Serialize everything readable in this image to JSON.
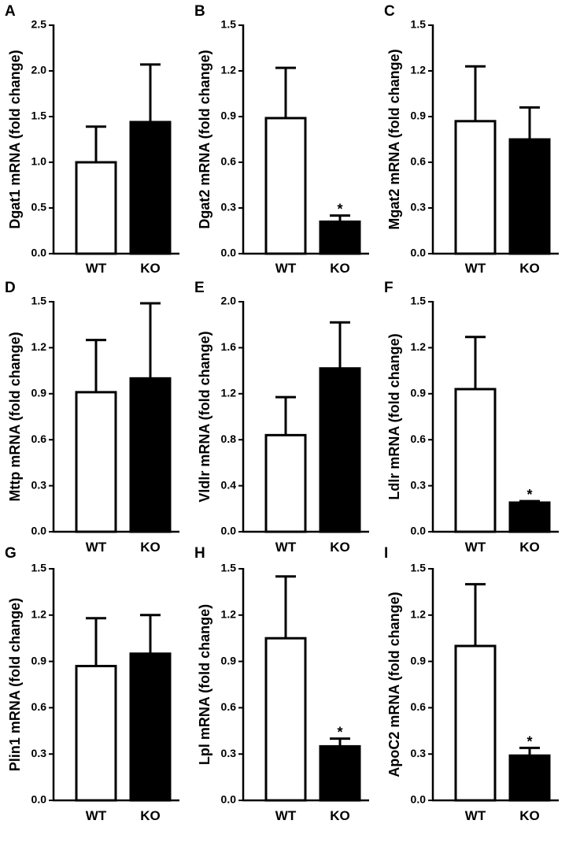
{
  "chart_data": [
    {
      "panel": "A",
      "type": "bar",
      "ylabel": "Dgat1 mRNA (fold change)",
      "categories": [
        "WT",
        "KO"
      ],
      "values": [
        1.0,
        1.44
      ],
      "errors": [
        0.39,
        0.63
      ],
      "ylim": [
        0,
        2.5
      ],
      "yticks": [
        "0.0",
        "0.5",
        "1.0",
        "1.5",
        "2.0",
        "2.5"
      ],
      "significance": [
        "",
        ""
      ]
    },
    {
      "panel": "B",
      "type": "bar",
      "ylabel": "Dgat2 mRNA (fold change)",
      "categories": [
        "WT",
        "KO"
      ],
      "values": [
        0.89,
        0.21
      ],
      "errors": [
        0.33,
        0.04
      ],
      "ylim": [
        0,
        1.5
      ],
      "yticks": [
        "0.0",
        "0.3",
        "0.6",
        "0.9",
        "1.2",
        "1.5"
      ],
      "significance": [
        "",
        "*"
      ]
    },
    {
      "panel": "C",
      "type": "bar",
      "ylabel": "Mgat2 mRNA (fold change)",
      "categories": [
        "WT",
        "KO"
      ],
      "values": [
        0.87,
        0.75
      ],
      "errors": [
        0.36,
        0.21
      ],
      "ylim": [
        0,
        1.5
      ],
      "yticks": [
        "0.0",
        "0.3",
        "0.6",
        "0.9",
        "1.2",
        "1.5"
      ],
      "significance": [
        "",
        ""
      ]
    },
    {
      "panel": "D",
      "type": "bar",
      "ylabel": "Mttp mRNA (fold change)",
      "categories": [
        "WT",
        "KO"
      ],
      "values": [
        0.91,
        1.0
      ],
      "errors": [
        0.34,
        0.49
      ],
      "ylim": [
        0,
        1.5
      ],
      "yticks": [
        "0.0",
        "0.3",
        "0.6",
        "0.9",
        "1.2",
        "1.5"
      ],
      "significance": [
        "",
        ""
      ]
    },
    {
      "panel": "E",
      "type": "bar",
      "ylabel": "Vldlr mRNA (fold change)",
      "categories": [
        "WT",
        "KO"
      ],
      "values": [
        0.84,
        1.42
      ],
      "errors": [
        0.33,
        0.4
      ],
      "ylim": [
        0,
        2.0
      ],
      "yticks": [
        "0.0",
        "0.4",
        "0.8",
        "1.2",
        "1.6",
        "2.0"
      ],
      "significance": [
        "",
        ""
      ]
    },
    {
      "panel": "F",
      "type": "bar",
      "ylabel": "Ldlr mRNA (fold change)",
      "categories": [
        "WT",
        "KO"
      ],
      "values": [
        0.93,
        0.19
      ],
      "errors": [
        0.34,
        0.01
      ],
      "ylim": [
        0,
        1.5
      ],
      "yticks": [
        "0.0",
        "0.3",
        "0.6",
        "0.9",
        "1.2",
        "1.5"
      ],
      "significance": [
        "",
        "*"
      ]
    },
    {
      "panel": "G",
      "type": "bar",
      "ylabel": "Plin1 mRNA (fold change)",
      "categories": [
        "WT",
        "KO"
      ],
      "values": [
        0.87,
        0.95
      ],
      "errors": [
        0.31,
        0.25
      ],
      "ylim": [
        0,
        1.5
      ],
      "yticks": [
        "0.0",
        "0.3",
        "0.6",
        "0.9",
        "1.2",
        "1.5"
      ],
      "significance": [
        "",
        ""
      ]
    },
    {
      "panel": "H",
      "type": "bar",
      "ylabel": "Lpl mRNA (fold change)",
      "categories": [
        "WT",
        "KO"
      ],
      "values": [
        1.05,
        0.35
      ],
      "errors": [
        0.4,
        0.05
      ],
      "ylim": [
        0,
        1.5
      ],
      "yticks": [
        "0.0",
        "0.3",
        "0.6",
        "0.9",
        "1.2",
        "1.5"
      ],
      "significance": [
        "",
        "*"
      ]
    },
    {
      "panel": "I",
      "type": "bar",
      "ylabel": "ApoC2 mRNA (fold change)",
      "categories": [
        "WT",
        "KO"
      ],
      "values": [
        1.0,
        0.29
      ],
      "errors": [
        0.4,
        0.05
      ],
      "ylim": [
        0,
        1.5
      ],
      "yticks": [
        "0.0",
        "0.3",
        "0.6",
        "0.9",
        "1.2",
        "1.5"
      ],
      "significance": [
        "",
        "*"
      ]
    }
  ],
  "colors": {
    "wt_fill": "#ffffff",
    "ko_fill": "#000000",
    "stroke": "#000000"
  }
}
